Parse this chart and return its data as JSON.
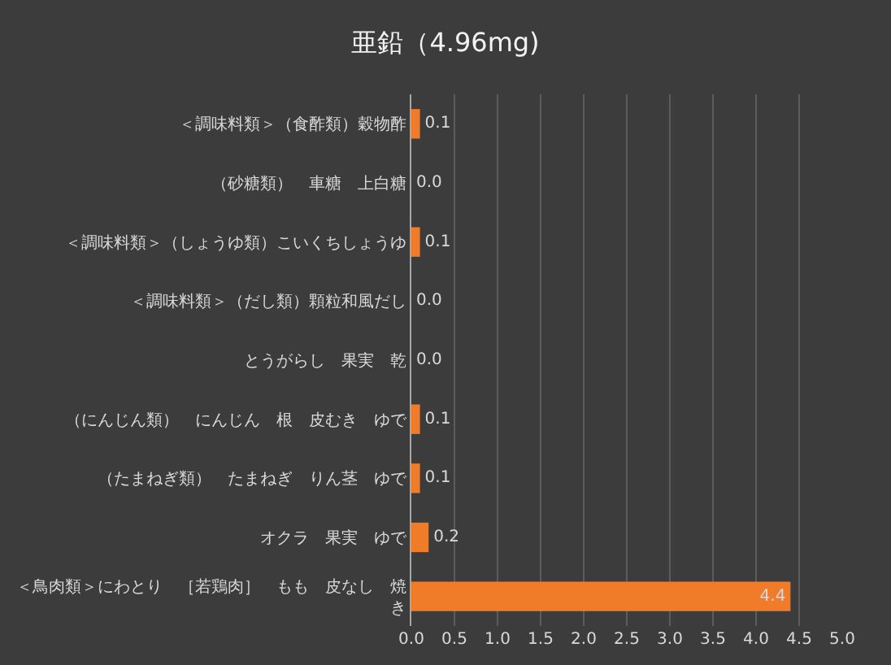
{
  "chart_data": {
    "type": "bar",
    "orientation": "horizontal",
    "title": "亜鉛（4.96mg)",
    "categories": [
      "＜調味料類＞（食酢類）穀物酢",
      "（砂糖類）　車糖　上白糖",
      "＜調味料類＞（しょうゆ類）こいくちしょうゆ",
      "＜調味料類＞（だし類）顆粒和風だし",
      "とうがらし　果実　乾",
      "（にんじん類）　にんじん　根　皮むき　ゆで",
      "（たまねぎ類）　たまねぎ　りん茎　ゆで",
      "オクラ　果実　ゆで",
      "＜鳥肉類＞にわとり　［若鶏肉］　もも　皮なし　焼き"
    ],
    "values": [
      0.1,
      0.0,
      0.1,
      0.0,
      0.0,
      0.1,
      0.1,
      0.2,
      4.4
    ],
    "value_labels": [
      "0.1",
      "0.0",
      "0.1",
      "0.0",
      "0.0",
      "0.1",
      "0.1",
      "0.2",
      "4.4"
    ],
    "color": "#f07c2a",
    "xlim": [
      0,
      5.0
    ],
    "xticks": [
      {
        "value": 0,
        "label": "0.0"
      },
      {
        "value": 0.5,
        "label": "0.5"
      },
      {
        "value": 1,
        "label": "1.0"
      },
      {
        "value": 1.5,
        "label": "1.5"
      },
      {
        "value": 2,
        "label": "2.0"
      },
      {
        "value": 2.5,
        "label": "2.5"
      },
      {
        "value": 3,
        "label": "3.0"
      },
      {
        "value": 3.5,
        "label": "3.5"
      },
      {
        "value": 4,
        "label": "4.0"
      },
      {
        "value": 4.5,
        "label": "4.5"
      },
      {
        "value": 5,
        "label": "5.0"
      }
    ],
    "grid": "x"
  }
}
